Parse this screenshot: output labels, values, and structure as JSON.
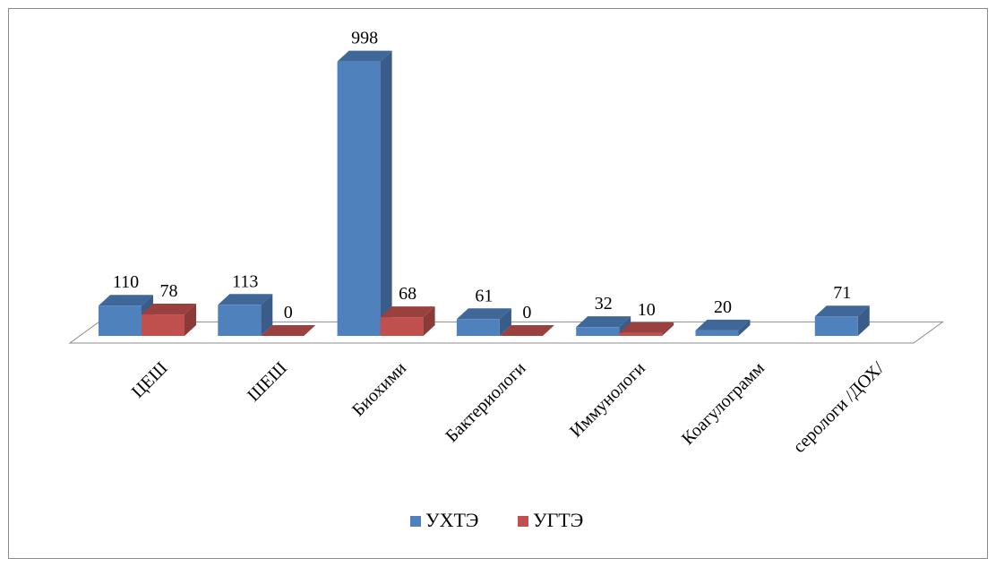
{
  "chart_data": {
    "type": "bar",
    "categories": [
      "ЦЕШ",
      "ШЕШ",
      "Биохими",
      "Бактериологи",
      "Иммунологи",
      "Коагулограмм",
      "серологи /ДОХ/"
    ],
    "series": [
      {
        "name": "УХТЭ",
        "values": [
          110,
          113,
          998,
          61,
          32,
          20,
          71
        ],
        "labels": [
          "110",
          "113",
          "998",
          "61",
          "32",
          "20",
          "71"
        ],
        "color": "#4F81BD"
      },
      {
        "name": "УГТЭ",
        "values": [
          78,
          0,
          68,
          0,
          10,
          null,
          null
        ],
        "labels": [
          "78",
          "0",
          "68",
          "0",
          "10",
          "",
          ""
        ],
        "color": "#C0504D"
      }
    ],
    "ylim": [
      0,
      1000
    ],
    "grid": false,
    "three_d": true,
    "legend_position": "bottom"
  }
}
